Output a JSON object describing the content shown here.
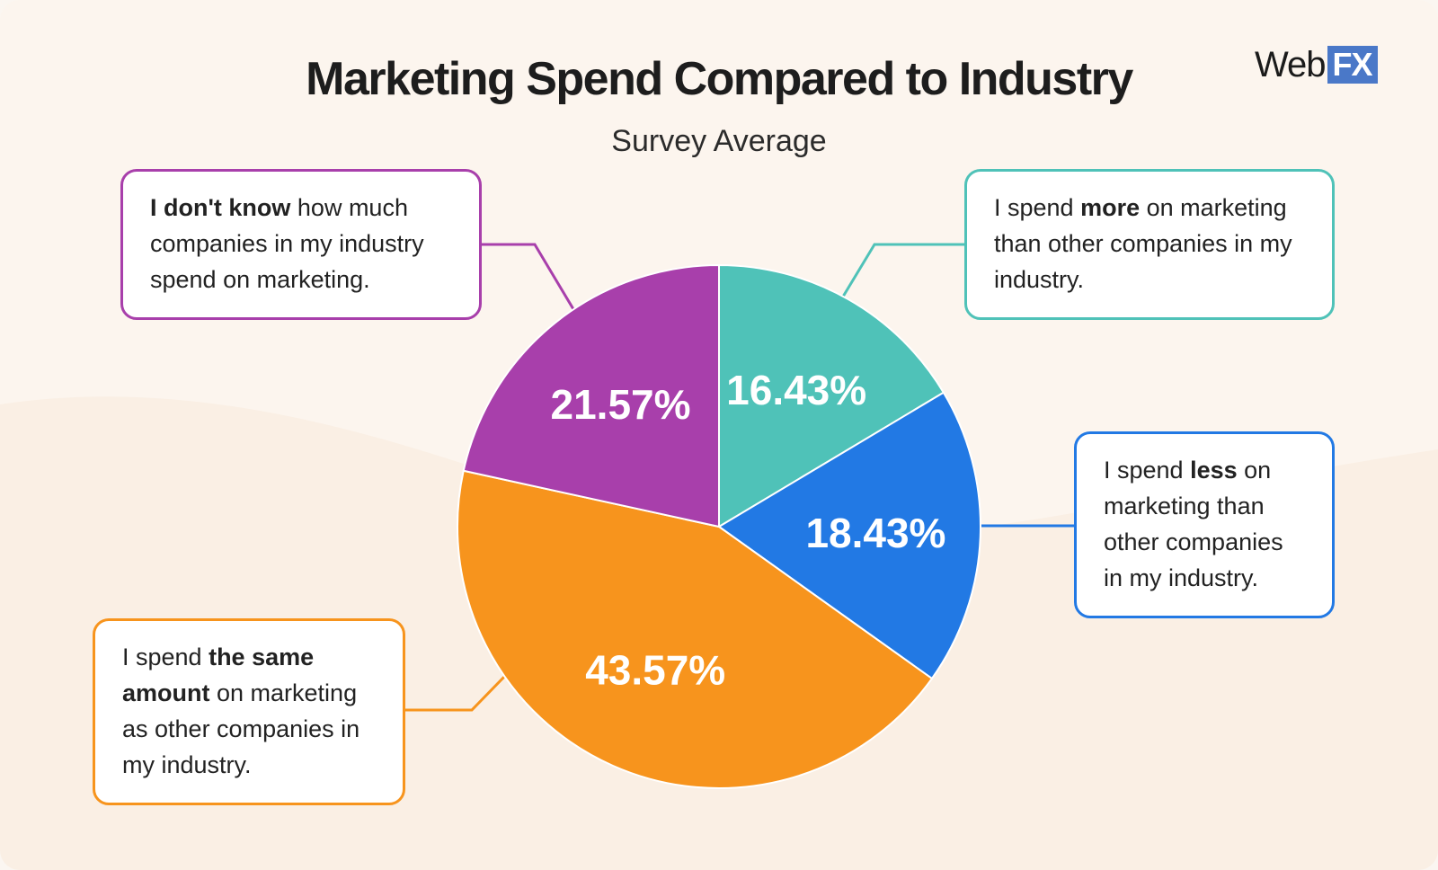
{
  "title": "Marketing Spend Compared to Industry",
  "subtitle": "Survey Average",
  "logo": {
    "text": "Web",
    "badge": "FX"
  },
  "chart_data": {
    "type": "pie",
    "title": "Marketing Spend Compared to Industry",
    "subtitle": "Survey Average",
    "slices": [
      {
        "label": "I spend more on marketing than other companies in my industry.",
        "value": 16.43,
        "display": "16.43%",
        "color": "#4fc2b8"
      },
      {
        "label": "I spend less on marketing than other companies in my industry.",
        "value": 18.43,
        "display": "18.43%",
        "color": "#2279e4"
      },
      {
        "label": "I spend the same amount on marketing as other companies in my industry.",
        "value": 43.57,
        "display": "43.57%",
        "color": "#f7941d"
      },
      {
        "label": "I don't know how much companies in my industry spend on marketing.",
        "value": 21.57,
        "display": "21.57%",
        "color": "#a83fab"
      }
    ]
  },
  "callouts": {
    "dontknow": {
      "bold": "I don't know",
      "rest": " how much companies in my industry spend on marketing."
    },
    "more": {
      "pre": "I spend ",
      "bold": "more",
      "post": " on marketing than other companies in my industry."
    },
    "less": {
      "pre": "I spend ",
      "bold": "less",
      "post": " on marketing than other companies in my industry."
    },
    "same": {
      "pre": "I spend ",
      "bold": "the same amount",
      "post": " on marketing as other companies in my industry."
    }
  }
}
